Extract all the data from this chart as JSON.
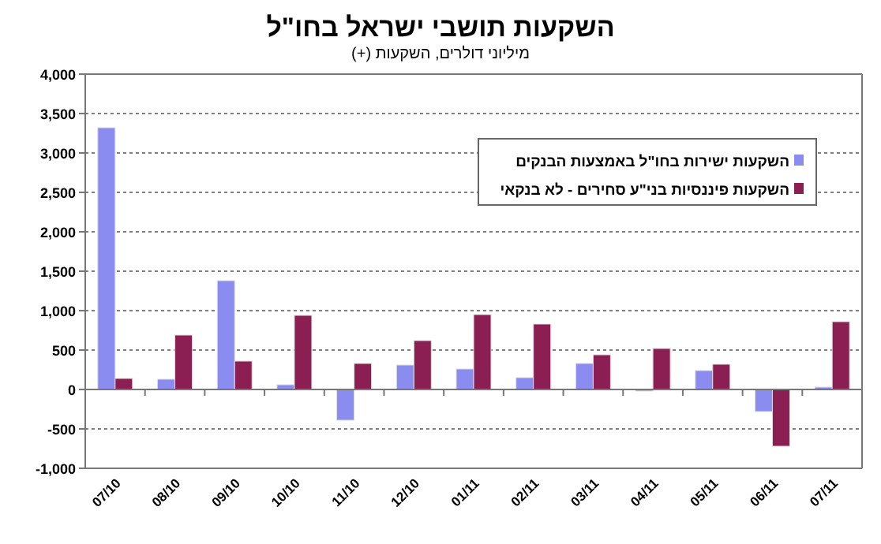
{
  "chart_data": {
    "type": "bar",
    "title": "השקעות תושבי ישראל בחו\"ל",
    "subtitle": "מיליוני דולרים, השקעות (+)",
    "categories": [
      "07/10",
      "08/10",
      "09/10",
      "10/10",
      "11/10",
      "12/10",
      "01/11",
      "02/11",
      "03/11",
      "04/11",
      "05/11",
      "06/11",
      "07/11"
    ],
    "series": [
      {
        "name": "השקעות ישירות בחו\"ל באמצעות הבנקים",
        "color": "#8a8cf0",
        "values": [
          3320,
          130,
          1380,
          60,
          -390,
          310,
          260,
          150,
          330,
          -20,
          240,
          -280,
          30
        ]
      },
      {
        "name": "השקעות פיננסיות בני\"ע סחירים - לא בנקאי",
        "color": "#8b1e52",
        "values": [
          140,
          690,
          360,
          940,
          330,
          620,
          950,
          830,
          440,
          520,
          320,
          -720,
          860
        ]
      }
    ],
    "ylim": [
      -1000,
      4000
    ],
    "yticks": [
      {
        "value": -1000,
        "label": "-1,000"
      },
      {
        "value": -500,
        "label": "-500"
      },
      {
        "value": 0,
        "label": "0"
      },
      {
        "value": 500,
        "label": "500"
      },
      {
        "value": 1000,
        "label": "1,000"
      },
      {
        "value": 1500,
        "label": "1,500"
      },
      {
        "value": 2000,
        "label": "2,000"
      },
      {
        "value": 2500,
        "label": "2,500"
      },
      {
        "value": 3000,
        "label": "3,000"
      },
      {
        "value": 3500,
        "label": "3,500"
      },
      {
        "value": 4000,
        "label": "4,000"
      }
    ],
    "grid": "y",
    "legend": "top right"
  }
}
